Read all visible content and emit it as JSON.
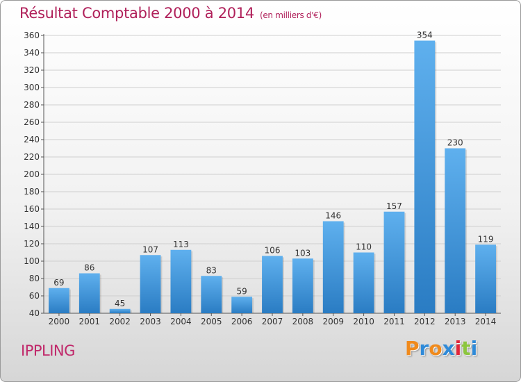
{
  "chart": {
    "title": "Résultat Comptable 2000 à 2014",
    "unit": "(en milliers d'€)",
    "commune": "IPPLING"
  },
  "logo": {
    "letters": [
      "P",
      "r",
      "o",
      "x",
      "i",
      "t",
      "i"
    ],
    "colors": [
      "#f08a1c",
      "#2f8ad8",
      "#f08a1c",
      "#2f8ad8",
      "#e2263a",
      "#8cc63f",
      "#2f8ad8"
    ]
  },
  "chart_data": {
    "type": "bar",
    "title": "Résultat Comptable 2000 à 2014",
    "subtitle": "(en milliers d'€)",
    "categories": [
      "2000",
      "2001",
      "2002",
      "2003",
      "2004",
      "2005",
      "2006",
      "2007",
      "2008",
      "2009",
      "2010",
      "2011",
      "2012",
      "2013",
      "2014"
    ],
    "values": [
      69,
      86,
      45,
      107,
      113,
      83,
      59,
      106,
      103,
      146,
      110,
      157,
      354,
      230,
      119
    ],
    "ylim": [
      40,
      360
    ],
    "yticks": [
      40,
      60,
      80,
      100,
      120,
      140,
      160,
      180,
      200,
      220,
      240,
      260,
      280,
      300,
      320,
      340,
      360
    ],
    "grid": true,
    "bar_color": "#3a8fd4"
  }
}
